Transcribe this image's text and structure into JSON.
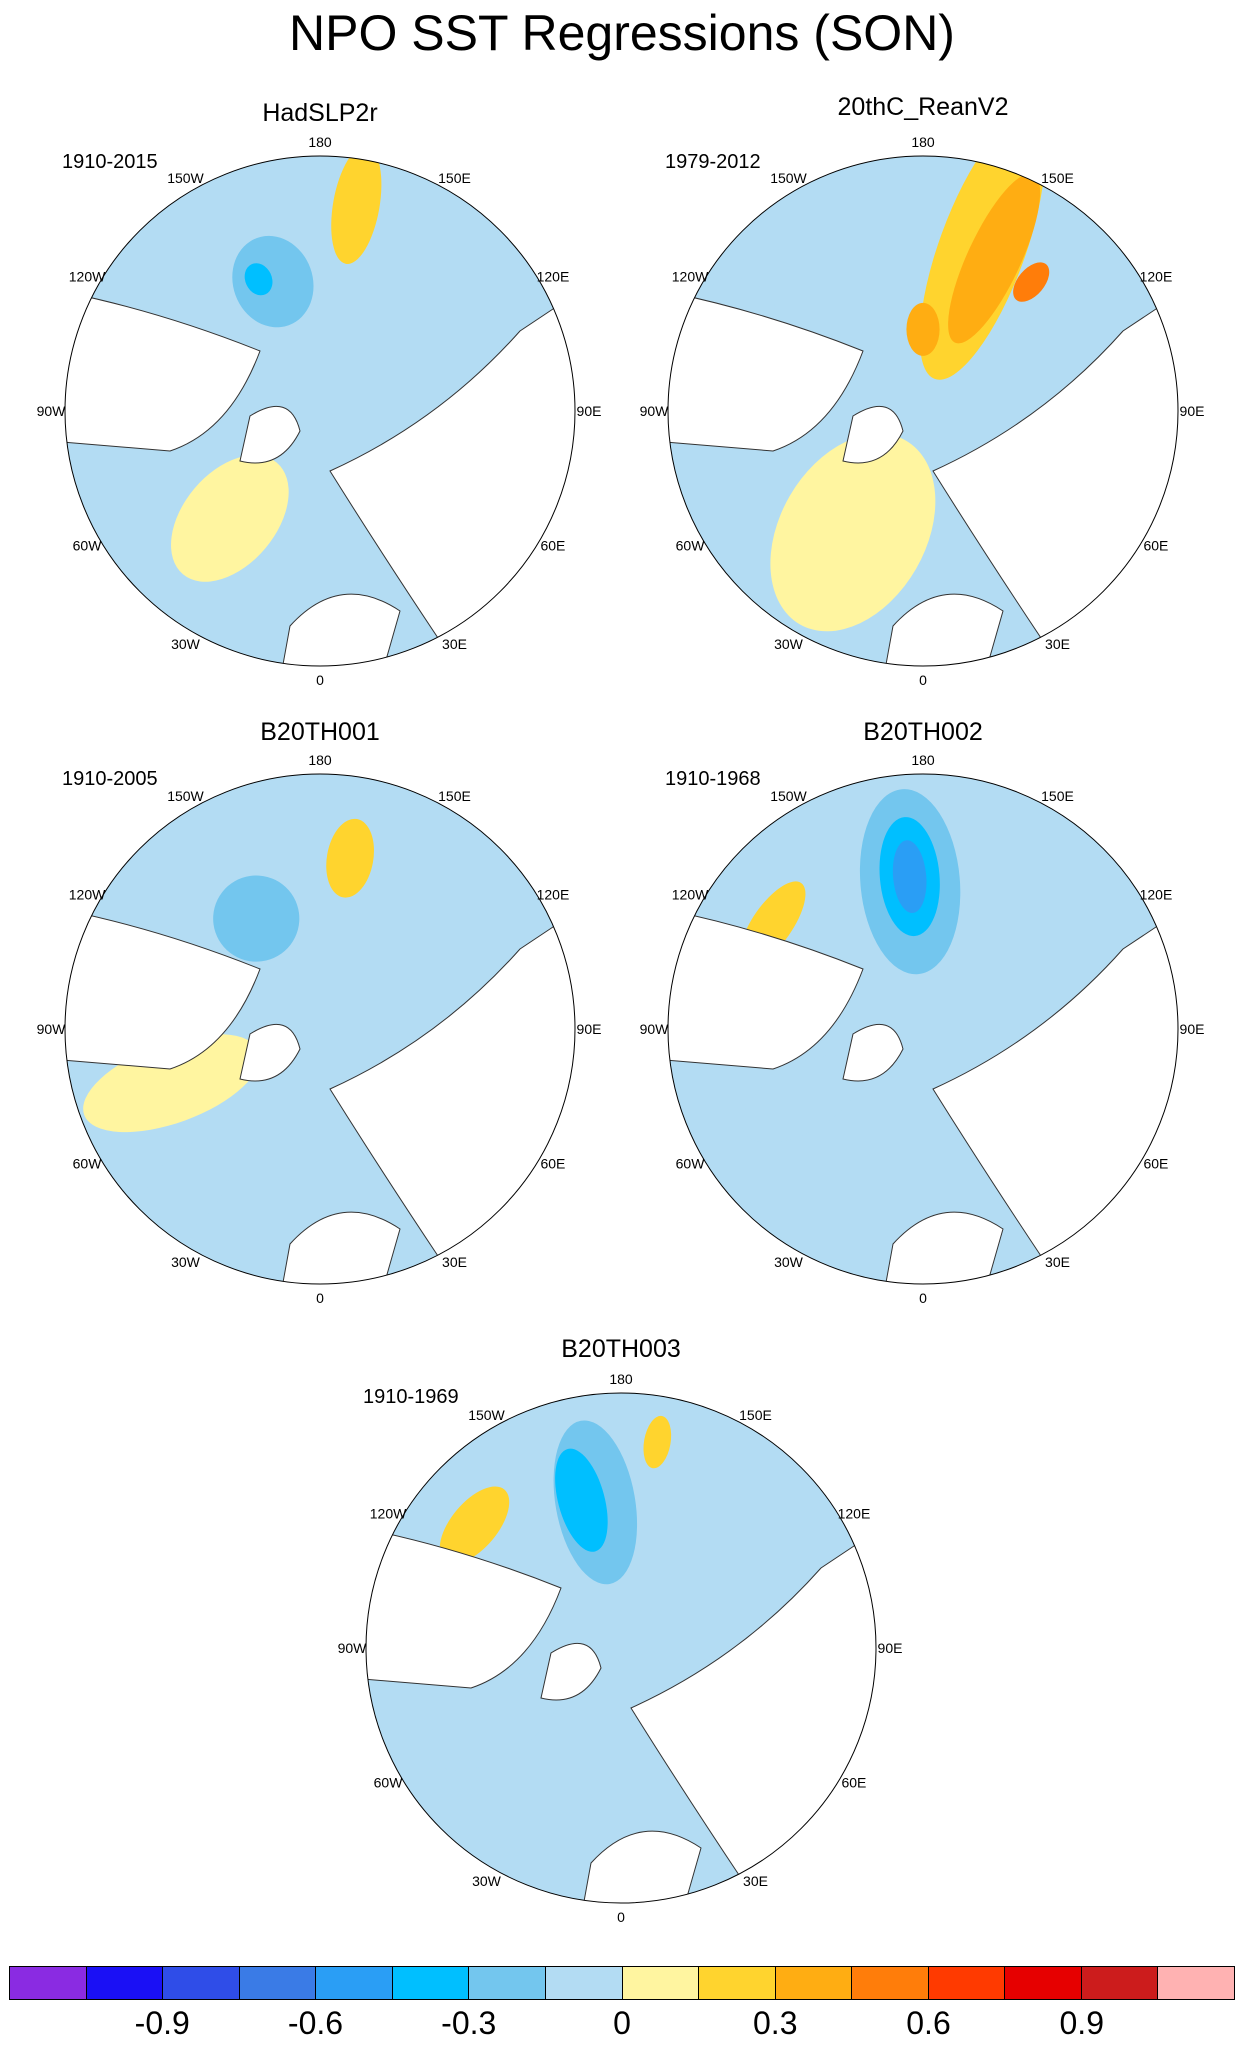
{
  "title": "NPO SST Regressions (SON)",
  "colors": {
    "land": "#ffffff",
    "coast": "#333333",
    "neutral_neg": "#b3dcf3",
    "neutral_pos": "#fff5a0",
    "palette": [
      "#8a2be2",
      "#1a10f5",
      "#2f4de8",
      "#3a7be6",
      "#2a9ef5",
      "#00bfff",
      "#73c6ee",
      "#b3dcf3",
      "#fff5a0",
      "#ffd42e",
      "#ffad12",
      "#ff7d0a",
      "#ff3a00",
      "#e60000",
      "#cc1c1c",
      "#ffb2b2"
    ]
  },
  "longitude_labels": [
    "180",
    "150E",
    "120E",
    "90E",
    "60E",
    "30E",
    "0",
    "30W",
    "60W",
    "90W",
    "120W",
    "150W"
  ],
  "panels": [
    {
      "title": "HadSLP2r",
      "period": "1910-2015",
      "blobs": [
        {
          "lon": 170,
          "r": 0.82,
          "rx": 0.18,
          "ry": 0.07,
          "level": 9
        },
        {
          "lon": 200,
          "r": 0.54,
          "rx": 0.14,
          "ry": 0.12,
          "level": 6
        },
        {
          "lon": 205,
          "r": 0.57,
          "rx": 0.05,
          "ry": 0.04,
          "level": 5
        },
        {
          "lon": 320,
          "r": 0.55,
          "rx": 0.22,
          "ry": 0.14,
          "level": 8
        },
        {
          "lon": 250,
          "r": 0.82,
          "rx": 0.09,
          "ry": 0.12,
          "level": 7
        }
      ]
    },
    {
      "title": "20thC_ReanV2",
      "period": "1979-2012",
      "blobs": [
        {
          "lon": 160,
          "r": 0.68,
          "rx": 0.42,
          "ry": 0.13,
          "level": 9
        },
        {
          "lon": 155,
          "r": 0.66,
          "rx": 0.28,
          "ry": 0.08,
          "level": 10
        },
        {
          "lon": 140,
          "r": 0.66,
          "rx": 0.07,
          "ry": 0.04,
          "level": 11
        },
        {
          "lon": 330,
          "r": 0.55,
          "rx": 0.32,
          "ry": 0.22,
          "level": 8
        },
        {
          "lon": 180,
          "r": 0.32,
          "rx": 0.08,
          "ry": 0.05,
          "level": 10
        },
        {
          "lon": 240,
          "r": 0.82,
          "rx": 0.11,
          "ry": 0.08,
          "level": 7
        }
      ]
    },
    {
      "title": "B20TH001",
      "period": "1910-2005",
      "blobs": [
        {
          "lon": 170,
          "r": 0.68,
          "rx": 0.12,
          "ry": 0.07,
          "level": 9
        },
        {
          "lon": 210,
          "r": 0.5,
          "rx": 0.13,
          "ry": 0.13,
          "level": 6
        },
        {
          "lon": 290,
          "r": 0.62,
          "rx": 0.28,
          "ry": 0.12,
          "level": 8
        },
        {
          "lon": 320,
          "r": 0.82,
          "rx": 0.18,
          "ry": 0.1,
          "level": 7
        }
      ]
    },
    {
      "title": "B20TH002",
      "period": "1910-1968",
      "blobs": [
        {
          "lon": 185,
          "r": 0.58,
          "rx": 0.28,
          "ry": 0.15,
          "level": 6
        },
        {
          "lon": 185,
          "r": 0.6,
          "rx": 0.18,
          "ry": 0.09,
          "level": 5
        },
        {
          "lon": 185,
          "r": 0.6,
          "rx": 0.11,
          "ry": 0.05,
          "level": 4
        },
        {
          "lon": 235,
          "r": 0.72,
          "rx": 0.06,
          "ry": 0.15,
          "level": 9
        },
        {
          "lon": 300,
          "r": 0.55,
          "rx": 0.2,
          "ry": 0.1,
          "level": 7
        }
      ]
    },
    {
      "title": "B20TH003",
      "period": "1910-1969",
      "blobs": [
        {
          "lon": 190,
          "r": 0.58,
          "rx": 0.25,
          "ry": 0.12,
          "level": 6
        },
        {
          "lon": 195,
          "r": 0.6,
          "rx": 0.16,
          "ry": 0.07,
          "level": 5
        },
        {
          "lon": 230,
          "r": 0.75,
          "rx": 0.07,
          "ry": 0.14,
          "level": 9
        },
        {
          "lon": 170,
          "r": 0.82,
          "rx": 0.08,
          "ry": 0.04,
          "level": 9
        },
        {
          "lon": 300,
          "r": 0.58,
          "rx": 0.22,
          "ry": 0.11,
          "level": 7
        }
      ]
    }
  ],
  "colorbar": {
    "tick_labels": [
      "-0.9",
      "-0.6",
      "-0.3",
      "0",
      "0.3",
      "0.6",
      "0.9"
    ],
    "tick_boundaries": [
      2,
      4,
      6,
      8,
      10,
      12,
      14
    ]
  }
}
